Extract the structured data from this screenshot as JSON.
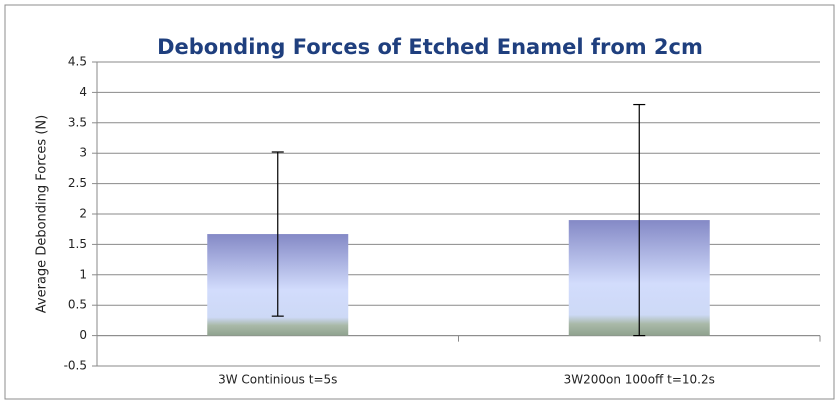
{
  "chart_data": {
    "type": "bar",
    "title": "Debonding Forces of Etched Enamel from 2cm",
    "y_label": "Average Debonding Forces  (N)",
    "categories": [
      "3W Continious t=5s",
      "3W200on 100off  t=10.2s"
    ],
    "values": [
      1.67,
      1.9
    ],
    "errors": [
      1.35,
      1.9
    ],
    "ylim": [
      -0.5,
      4.5
    ],
    "yticks": [
      -0.5,
      0,
      0.5,
      1,
      1.5,
      2,
      2.5,
      3,
      3.5,
      4,
      4.5
    ],
    "grid": true
  }
}
